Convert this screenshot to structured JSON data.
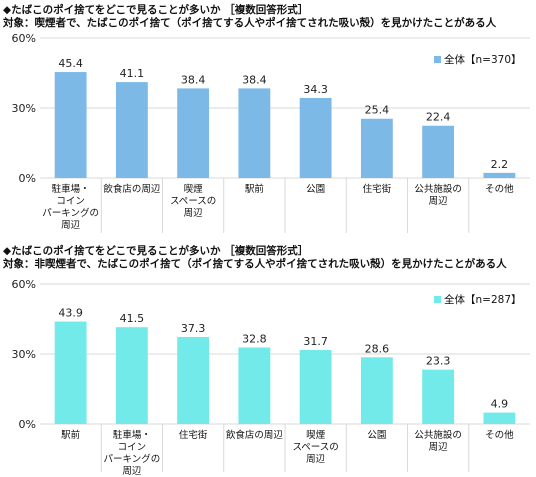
{
  "chart_data": [
    {
      "type": "bar",
      "title": "◆たばこのポイ捨てをどこで見ることが多いか ［複数回答形式］",
      "subtitle": "対象：喫煙者で、たばこのポイ捨て（ポイ捨てする人やポイ捨てされた吸い殻）を見かけたことがある人",
      "categories": [
        "駐車場・\nコイン\nパーキングの\n周辺",
        "飲食店の周辺",
        "喫煙\nスペースの\n周辺",
        "駅前",
        "公園",
        "住宅街",
        "公共施設の\n周辺",
        "その他"
      ],
      "series": [
        {
          "name": "全体【n=370】",
          "values": [
            45.4,
            41.1,
            38.4,
            38.4,
            34.3,
            25.4,
            22.4,
            2.2
          ]
        }
      ],
      "value_labels": [
        "45.4",
        "41.1",
        "38.4",
        "38.4",
        "34.3",
        "25.4",
        "22.4",
        "2.2"
      ],
      "ylim": [
        0,
        60
      ],
      "yticks": [
        "0%",
        "30%",
        "60%"
      ],
      "ytick_values": [
        0,
        30,
        60
      ],
      "grid": true,
      "legend": "top-right",
      "bar_color": "#7cb9e6"
    },
    {
      "type": "bar",
      "title": "◆たばこのポイ捨てをどこで見ることが多いか ［複数回答形式］",
      "subtitle": "対象：非喫煙者で、たばこのポイ捨て（ポイ捨てする人やポイ捨てされた吸い殻）を見かけたことがある人",
      "categories": [
        "駅前",
        "駐車場・\nコイン\nパーキングの\n周辺",
        "住宅街",
        "飲食店の周辺",
        "喫煙\nスペースの\n周辺",
        "公園",
        "公共施設の\n周辺",
        "その他"
      ],
      "series": [
        {
          "name": "全体【n=287】",
          "values": [
            43.9,
            41.5,
            37.3,
            32.8,
            31.7,
            28.6,
            23.3,
            4.9
          ]
        }
      ],
      "value_labels": [
        "43.9",
        "41.5",
        "37.3",
        "32.8",
        "31.7",
        "28.6",
        "23.3",
        "4.9"
      ],
      "ylim": [
        0,
        60
      ],
      "yticks": [
        "0%",
        "30%",
        "60%"
      ],
      "ytick_values": [
        0,
        30,
        60
      ],
      "grid": true,
      "legend": "top-right",
      "bar_color": "#72eaea"
    }
  ]
}
